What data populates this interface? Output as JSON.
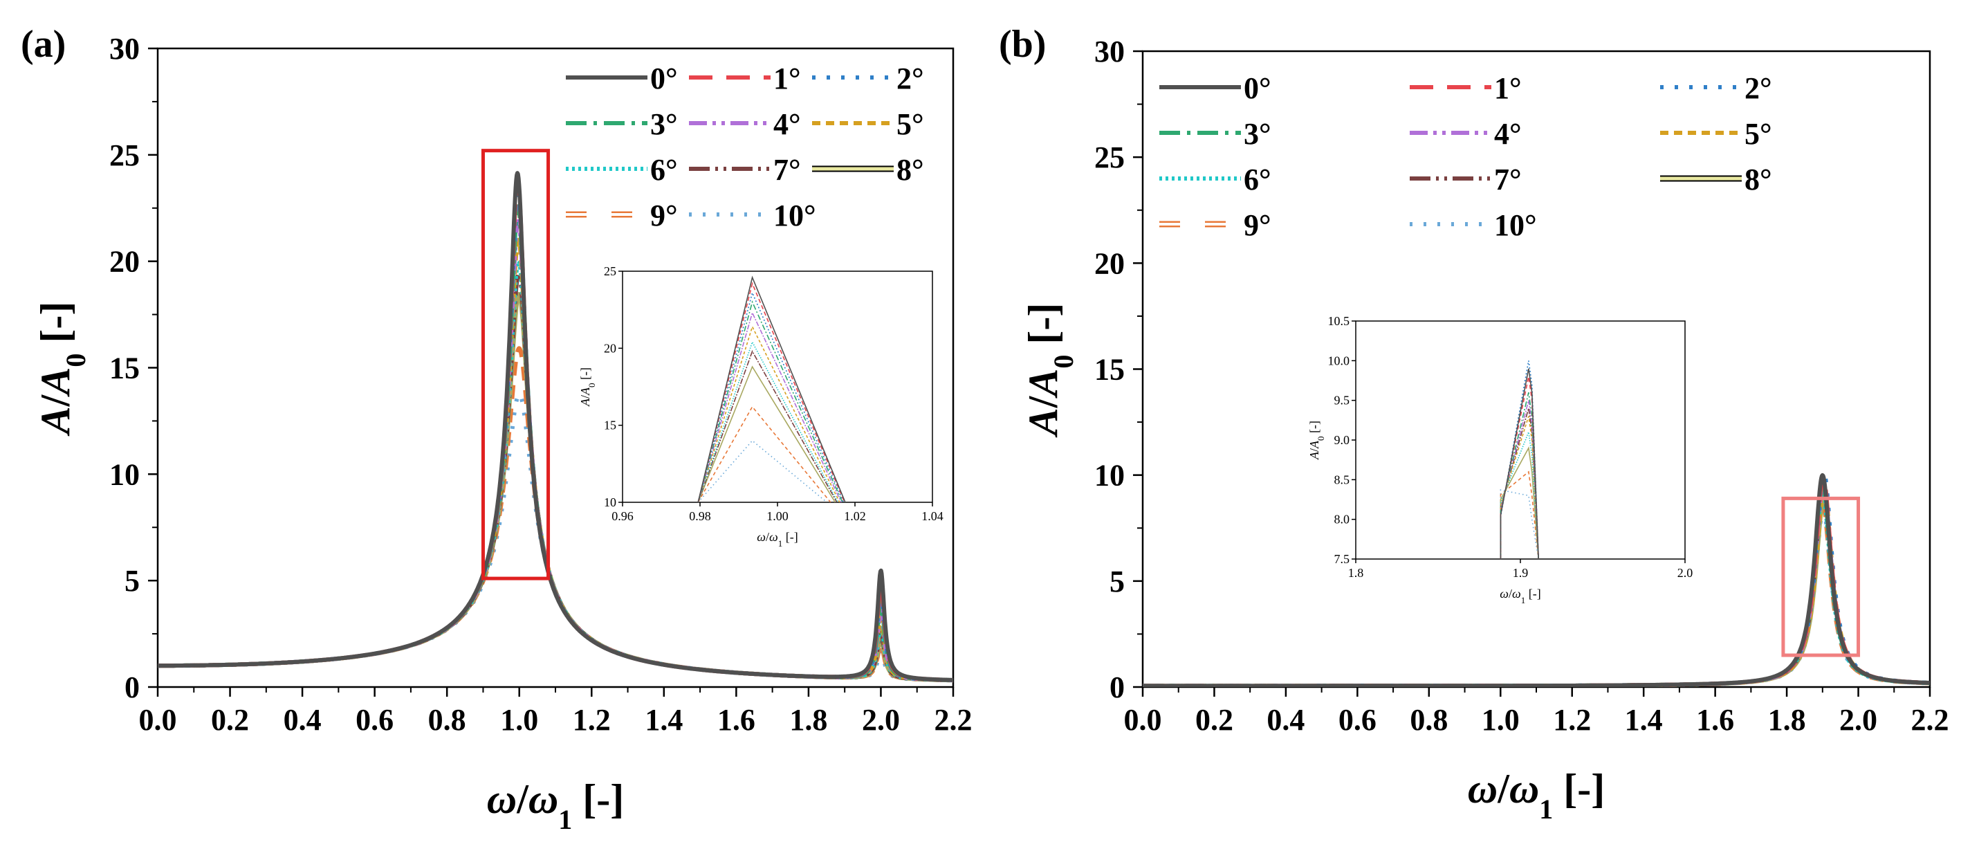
{
  "figure": {
    "background": "#ffffff",
    "series_colors": [
      "#505050",
      "#e8444c",
      "#2f7fc8",
      "#2ea870",
      "#b070d8",
      "#d6a020",
      "#20c8c8",
      "#7a4040",
      "#a8a860",
      "#e87838",
      "#6aa8d8"
    ],
    "series_names": [
      "0°",
      "1°",
      "2°",
      "3°",
      "4°",
      "5°",
      "6°",
      "7°",
      "8°",
      "9°",
      "10°"
    ]
  },
  "chart_data": [
    {
      "panel": "(a)",
      "type": "line",
      "xlabel": "ω/ω₁ [-]",
      "ylabel": "A/A₀ [-]",
      "xlim": [
        0.0,
        2.2
      ],
      "ylim": [
        0,
        30
      ],
      "xticks": [
        "0.0",
        "0.2",
        "0.4",
        "0.6",
        "0.8",
        "1.0",
        "1.2",
        "1.4",
        "1.6",
        "1.8",
        "2.0",
        "2.2"
      ],
      "yticks": [
        "0",
        "5",
        "10",
        "15",
        "20",
        "25",
        "30"
      ],
      "highlight_box": {
        "x": [
          0.9,
          1.08
        ],
        "y": [
          5.1,
          25.2
        ],
        "color": "#e02020"
      },
      "series": [
        {
          "name": "0°",
          "peak1": 24.6,
          "peak2": 5.1
        },
        {
          "name": "1°",
          "peak1": 24.2,
          "peak2": 4.6
        },
        {
          "name": "2°",
          "peak1": 23.6,
          "peak2": 4.1
        },
        {
          "name": "3°",
          "peak1": 23.0,
          "peak2": 3.7
        },
        {
          "name": "4°",
          "peak1": 22.3,
          "peak2": 3.3
        },
        {
          "name": "5°",
          "peak1": 21.4,
          "peak2": 2.9
        },
        {
          "name": "6°",
          "peak1": 20.4,
          "peak2": 2.5
        },
        {
          "name": "7°",
          "peak1": 19.8,
          "peak2": 2.2
        },
        {
          "name": "8°",
          "peak1": 18.8,
          "peak2": 1.9
        },
        {
          "name": "9°",
          "peak1": 16.2,
          "peak2": 1.6
        },
        {
          "name": "10°",
          "peak1": 14.0,
          "peak2": 1.3
        }
      ],
      "inset": {
        "xlabel": "ω/ω₁ [-]",
        "ylabel": "A/A₀ [-]",
        "xlim": [
          0.96,
          1.04
        ],
        "ylim": [
          10,
          25
        ],
        "xticks": [
          "0.96",
          "0.98",
          "1.00",
          "1.02",
          "1.04"
        ],
        "yticks": [
          "10",
          "15",
          "20",
          "25"
        ]
      }
    },
    {
      "panel": "(b)",
      "type": "line",
      "xlabel": "ω/ω₁ [-]",
      "ylabel": "A/A₀ [-]",
      "xlim": [
        0.0,
        2.2
      ],
      "ylim": [
        0,
        30
      ],
      "xticks": [
        "0.0",
        "0.2",
        "0.4",
        "0.6",
        "0.8",
        "1.0",
        "1.2",
        "1.4",
        "1.6",
        "1.8",
        "2.0",
        "2.2"
      ],
      "yticks": [
        "0",
        "5",
        "10",
        "15",
        "20",
        "25",
        "30"
      ],
      "highlight_box": {
        "x": [
          1.79,
          2.0
        ],
        "y": [
          1.5,
          8.9
        ],
        "color": "#f08080"
      },
      "series": [
        {
          "name": "0°",
          "peak": 9.9
        },
        {
          "name": "1°",
          "peak": 9.8
        },
        {
          "name": "2°",
          "peak": 10.0
        },
        {
          "name": "3°",
          "peak": 9.6
        },
        {
          "name": "4°",
          "peak": 9.5
        },
        {
          "name": "5°",
          "peak": 9.3
        },
        {
          "name": "6°",
          "peak": 9.1
        },
        {
          "name": "7°",
          "peak": 9.4
        },
        {
          "name": "8°",
          "peak": 8.9
        },
        {
          "name": "9°",
          "peak": 8.6
        },
        {
          "name": "10°",
          "peak": 8.3
        }
      ],
      "inset": {
        "xlabel": "ω/ω₁ [-]",
        "ylabel": "A/A₀ [-]",
        "xlim": [
          1.8,
          2.0
        ],
        "ylim": [
          7.5,
          10.5
        ],
        "xticks": [
          "1.8",
          "1.9",
          "2.0"
        ],
        "yticks": [
          "7.5",
          "8.0",
          "8.5",
          "9.0",
          "9.5",
          "10.0",
          "10.5"
        ]
      }
    }
  ]
}
